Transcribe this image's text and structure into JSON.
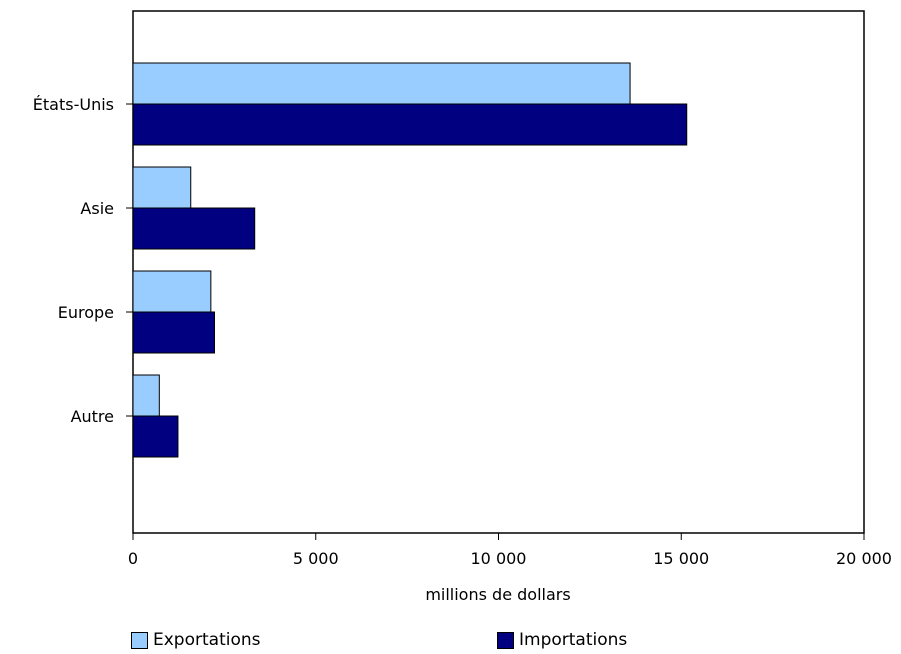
{
  "chart_data": {
    "type": "bar",
    "orientation": "horizontal",
    "categories": [
      "États-Unis",
      "Asie",
      "Europe",
      "Autre"
    ],
    "series": [
      {
        "name": "Exportations",
        "color": "#99ccff",
        "values": [
          13600,
          1580,
          2130,
          720
        ]
      },
      {
        "name": "Importations",
        "color": "#000080",
        "values": [
          15150,
          3330,
          2230,
          1230
        ]
      }
    ],
    "xlabel": "millions de dollars",
    "xlim": [
      0,
      20000
    ],
    "xticks": [
      0,
      5000,
      10000,
      15000,
      20000
    ],
    "xtick_labels": [
      "0",
      "5 000",
      "10 000",
      "15 000",
      "20 000"
    ],
    "grid": false,
    "legend_position": "bottom"
  }
}
